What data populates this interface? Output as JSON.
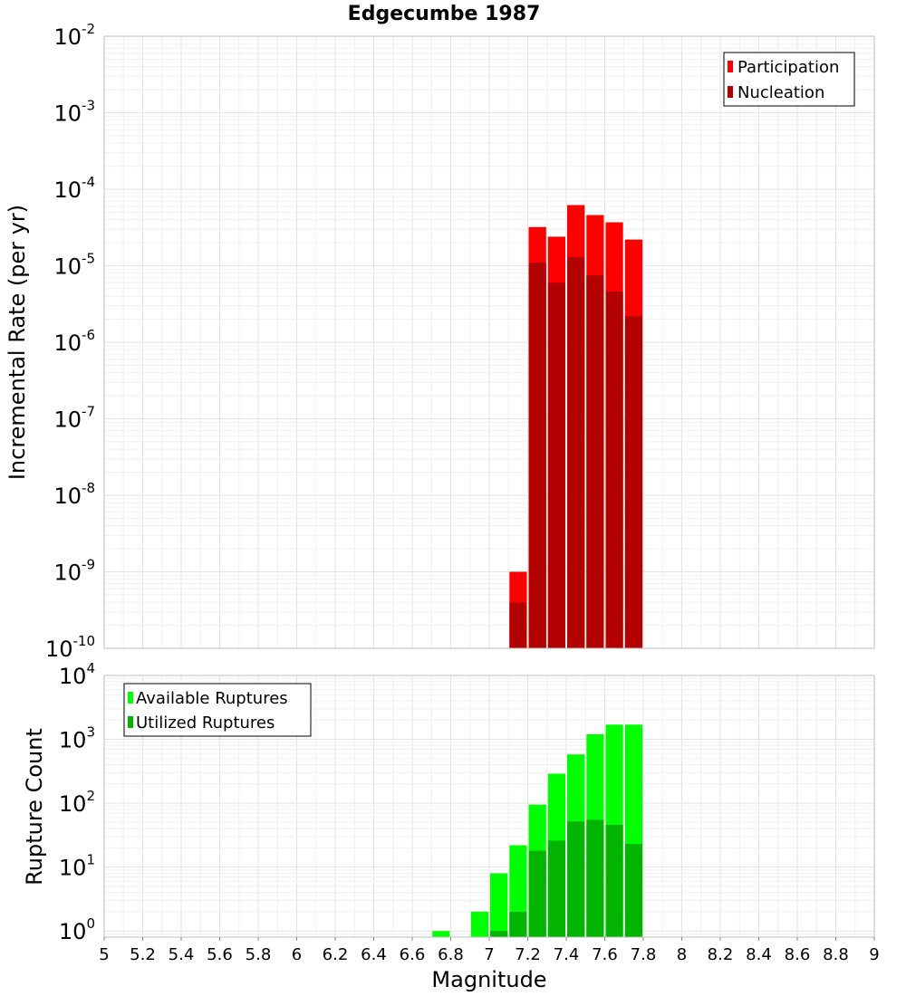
{
  "chart_data": [
    {
      "type": "bar",
      "title": "Edgecumbe 1987",
      "xlabel": "",
      "ylabel": "Incremental Rate (per yr)",
      "yscale": "log",
      "ylim": [
        1e-10,
        0.01
      ],
      "xlim": [
        5,
        9
      ],
      "bin_width": 0.1,
      "grid": true,
      "legend_position": "top-right",
      "x": [
        7.15,
        7.25,
        7.35,
        7.45,
        7.55,
        7.65,
        7.75
      ],
      "series": [
        {
          "name": "Participation",
          "color": "#ff0000",
          "values": [
            1e-09,
            3.2e-05,
            2.4e-05,
            6.2e-05,
            4.6e-05,
            3.7e-05,
            2.2e-05
          ]
        },
        {
          "name": "Nucleation",
          "color": "#b30000",
          "values": [
            4e-10,
            1.1e-05,
            6e-06,
            1.3e-05,
            7.5e-06,
            4.6e-06,
            2.2e-06
          ]
        }
      ],
      "y_tick_exponents": [
        -10,
        -9,
        -8,
        -7,
        -6,
        -5,
        -4,
        -3,
        -2
      ]
    },
    {
      "type": "bar",
      "title": "",
      "xlabel": "Magnitude",
      "ylabel": "Rupture Count",
      "yscale": "log",
      "ylim": [
        0.8,
        10000
      ],
      "xlim": [
        5,
        9
      ],
      "bin_width": 0.1,
      "grid": true,
      "legend_position": "top-left",
      "x": [
        6.75,
        6.95,
        7.05,
        7.15,
        7.25,
        7.35,
        7.45,
        7.55,
        7.65,
        7.75
      ],
      "series": [
        {
          "name": "Available Ruptures",
          "color": "#00ff00",
          "values": [
            1,
            2,
            8,
            22,
            95,
            290,
            580,
            1200,
            1700,
            1700
          ]
        },
        {
          "name": "Utilized Ruptures",
          "color": "#00b400",
          "values": [
            0,
            0,
            1,
            2,
            18,
            26,
            52,
            55,
            46,
            23
          ]
        }
      ],
      "y_tick_exponents": [
        0,
        1,
        2,
        3,
        4
      ],
      "x_ticks": [
        "5",
        "5.2",
        "5.4",
        "5.6",
        "5.8",
        "6",
        "6.2",
        "6.4",
        "6.6",
        "6.8",
        "7",
        "7.2",
        "7.4",
        "7.6",
        "7.8",
        "8",
        "8.2",
        "8.4",
        "8.6",
        "8.8",
        "9"
      ]
    }
  ]
}
